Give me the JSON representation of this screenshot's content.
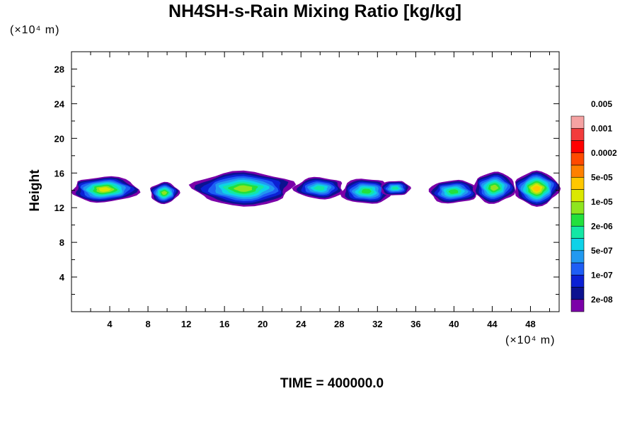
{
  "chart_data": {
    "type": "heatmap",
    "title": "NH4SH-s-Rain Mixing Ratio [kg/kg]",
    "ylabel": "Height",
    "xunit": "(×10⁴ m)",
    "yunit": "(×10⁴ m)",
    "footer": "TIME = 400000.0",
    "xlim": [
      0,
      51
    ],
    "ylim": [
      0,
      30
    ],
    "xticks": [
      4,
      8,
      12,
      16,
      20,
      24,
      28,
      32,
      36,
      40,
      44,
      48
    ],
    "yticks": [
      4,
      8,
      12,
      16,
      20,
      24,
      28
    ],
    "colorbar": {
      "colors": [
        "#7b00a8",
        "#0c1290",
        "#0b20d4",
        "#1e5ef5",
        "#2199f0",
        "#0ed2e8",
        "#13e7a5",
        "#22e03d",
        "#8ee51f",
        "#dbe800",
        "#ffc800",
        "#ff8000",
        "#ff4a00",
        "#ff0000",
        "#f23c3c",
        "#f5a2a2"
      ],
      "labels": [
        "2e-08",
        "1e-07",
        "5e-07",
        "2e-06",
        "1e-05",
        "5e-05",
        "0.0002",
        "0.001",
        "0.005"
      ]
    },
    "clouds": [
      {
        "x": [
          0,
          6.9
        ],
        "y": [
          12.5,
          15.7
        ],
        "peak": 0.95
      },
      {
        "x": [
          8.2,
          11.2
        ],
        "y": [
          12.4,
          15.0
        ],
        "peak": 0.85
      },
      {
        "x": [
          12.8,
          23.2
        ],
        "y": [
          12.1,
          16.3
        ],
        "peak": 0.78
      },
      {
        "x": [
          23.4,
          28.5
        ],
        "y": [
          12.9,
          15.6
        ],
        "peak": 0.68
      },
      {
        "x": [
          28.3,
          33.4
        ],
        "y": [
          12.3,
          15.5
        ],
        "peak": 0.72
      },
      {
        "x": [
          32.3,
          35.4
        ],
        "y": [
          13.3,
          15.2
        ],
        "peak": 0.62
      },
      {
        "x": [
          37.4,
          42.5
        ],
        "y": [
          12.4,
          15.3
        ],
        "peak": 0.76
      },
      {
        "x": [
          42.0,
          46.4
        ],
        "y": [
          12.4,
          16.2
        ],
        "peak": 0.78
      },
      {
        "x": [
          46.3,
          51.0
        ],
        "y": [
          12.1,
          16.3
        ],
        "peak": 0.98
      }
    ]
  }
}
